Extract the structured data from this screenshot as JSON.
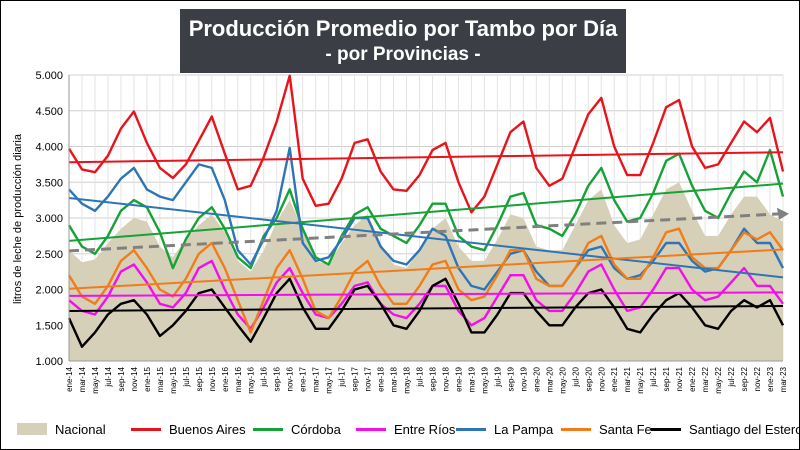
{
  "header": {
    "title": "Producción Promedio por Tambo por Día",
    "subtitle": "- por Provincias -"
  },
  "chart_data": {
    "type": "line",
    "ylabel": "litros de leche de producción diaria",
    "ylim": [
      1000,
      5000
    ],
    "y_ticks": [
      "1.000",
      "1.500",
      "2.000",
      "2.500",
      "3.000",
      "3.500",
      "4.000",
      "4.500",
      "5.000"
    ],
    "y_tick_values": [
      1000,
      1500,
      2000,
      2500,
      3000,
      3500,
      4000,
      4500,
      5000
    ],
    "x_labels": [
      "ene-14",
      "mar-14",
      "may-14",
      "jul-14",
      "sep-14",
      "nov-14",
      "ene-15",
      "mar-15",
      "may-15",
      "jul-15",
      "sep-15",
      "nov-15",
      "ene-16",
      "mar-16",
      "may-16",
      "jul-16",
      "sep-16",
      "nov-16",
      "ene-17",
      "mar-17",
      "may-17",
      "jul-17",
      "sep-17",
      "nov-17",
      "ene-18",
      "mar-18",
      "may-18",
      "jul-18",
      "sep-18",
      "nov-18",
      "ene-19",
      "mar-19",
      "may-19",
      "jul-19",
      "sep-19",
      "nov-19",
      "ene-20",
      "mar-20",
      "may-20",
      "jul-20",
      "sep-20",
      "nov-20",
      "ene-21",
      "mar-21",
      "may-21",
      "jul-21",
      "sep-21",
      "nov-21",
      "ene-22",
      "mar-22",
      "may-22",
      "jul-22",
      "sep-22",
      "nov-22",
      "ene-23",
      "mar-23"
    ],
    "grid": true,
    "legend_position": "bottom",
    "series": [
      {
        "name": "Nacional",
        "color": "#d6d0b8",
        "style": "area",
        "values": [
          2550,
          2380,
          2420,
          2650,
          2850,
          3000,
          2950,
          2600,
          2450,
          2700,
          2900,
          3050,
          2800,
          2400,
          2250,
          2550,
          2950,
          3250,
          2850,
          2400,
          2350,
          2650,
          2900,
          3050,
          2650,
          2350,
          2300,
          2550,
          2850,
          3000,
          2600,
          2400,
          2400,
          2700,
          3050,
          3000,
          2600,
          2550,
          2550,
          2900,
          3250,
          3400,
          2900,
          2650,
          2700,
          3050,
          3400,
          3500,
          3100,
          2750,
          2750,
          3050,
          3300,
          3300,
          3050,
          2950
        ]
      },
      {
        "name": "Buenos Aires",
        "color": "#e8141c",
        "style": "line",
        "values": [
          3970,
          3680,
          3640,
          3870,
          4250,
          4490,
          4050,
          3700,
          3560,
          3750,
          4080,
          4420,
          3900,
          3400,
          3450,
          3850,
          4350,
          4990,
          3550,
          3170,
          3200,
          3550,
          4050,
          4100,
          3650,
          3400,
          3380,
          3600,
          3950,
          4050,
          3500,
          3080,
          3300,
          3750,
          4200,
          4350,
          3700,
          3450,
          3550,
          4000,
          4450,
          4680,
          4000,
          3600,
          3600,
          4050,
          4550,
          4650,
          4000,
          3700,
          3750,
          4050,
          4350,
          4200,
          4400,
          3650
        ]
      },
      {
        "name": "Córdoba",
        "color": "#16a236",
        "style": "line",
        "values": [
          2900,
          2600,
          2500,
          2750,
          3100,
          3250,
          3150,
          2800,
          2300,
          2700,
          3000,
          3150,
          2850,
          2450,
          2300,
          2750,
          3000,
          3400,
          2850,
          2450,
          2350,
          2750,
          3050,
          3150,
          2850,
          2750,
          2650,
          2900,
          3200,
          3200,
          2750,
          2600,
          2550,
          2900,
          3300,
          3350,
          2900,
          2850,
          2750,
          3050,
          3450,
          3700,
          3250,
          2950,
          3000,
          3350,
          3800,
          3900,
          3450,
          3100,
          3000,
          3350,
          3650,
          3500,
          3950,
          3300
        ]
      },
      {
        "name": "Entre Ríos",
        "color": "#f20fe8",
        "style": "line",
        "values": [
          1850,
          1700,
          1650,
          1900,
          2250,
          2350,
          2100,
          1800,
          1750,
          1950,
          2300,
          2400,
          2000,
          1650,
          1450,
          1750,
          2100,
          2300,
          1950,
          1650,
          1600,
          1800,
          2050,
          2100,
          1800,
          1650,
          1600,
          1800,
          2050,
          2050,
          1700,
          1500,
          1600,
          1900,
          2200,
          2200,
          1850,
          1700,
          1700,
          1950,
          2250,
          2350,
          2000,
          1700,
          1750,
          2000,
          2300,
          2300,
          2000,
          1850,
          1900,
          2100,
          2300,
          2050,
          2050,
          1800
        ]
      },
      {
        "name": "La Pampa",
        "color": "#2e75b6",
        "style": "line",
        "values": [
          3400,
          3200,
          3100,
          3300,
          3550,
          3700,
          3400,
          3300,
          3250,
          3500,
          3750,
          3700,
          3250,
          2550,
          2350,
          2700,
          3100,
          3980,
          2650,
          2400,
          2450,
          2700,
          3000,
          3000,
          2600,
          2400,
          2350,
          2550,
          2850,
          2750,
          2300,
          2050,
          2000,
          2250,
          2500,
          2550,
          2250,
          2050,
          2050,
          2300,
          2550,
          2600,
          2300,
          2150,
          2200,
          2400,
          2650,
          2650,
          2400,
          2250,
          2300,
          2550,
          2850,
          2650,
          2650,
          2300
        ]
      },
      {
        "name": "Santa Fe",
        "color": "#f07d1a",
        "style": "line",
        "values": [
          2200,
          1900,
          1800,
          2050,
          2400,
          2550,
          2300,
          2000,
          1900,
          2150,
          2500,
          2650,
          2300,
          1850,
          1400,
          1850,
          2300,
          2550,
          2150,
          1700,
          1600,
          1900,
          2250,
          2400,
          2050,
          1800,
          1800,
          2050,
          2350,
          2400,
          2000,
          1850,
          1900,
          2200,
          2550,
          2550,
          2150,
          2050,
          2050,
          2300,
          2650,
          2750,
          2350,
          2150,
          2150,
          2450,
          2800,
          2850,
          2450,
          2300,
          2300,
          2550,
          2800,
          2700,
          2800,
          2550
        ]
      },
      {
        "name": "Santiago del Estero",
        "color": "#000000",
        "style": "line",
        "values": [
          1600,
          1200,
          1400,
          1650,
          1800,
          1850,
          1650,
          1350,
          1500,
          1700,
          1950,
          2000,
          1750,
          1500,
          1270,
          1600,
          1950,
          2150,
          1750,
          1450,
          1450,
          1700,
          2000,
          2050,
          1800,
          1500,
          1450,
          1700,
          2050,
          2150,
          1800,
          1400,
          1400,
          1650,
          1950,
          1950,
          1700,
          1500,
          1500,
          1750,
          1950,
          2000,
          1750,
          1450,
          1400,
          1650,
          1850,
          1950,
          1750,
          1500,
          1450,
          1700,
          1850,
          1750,
          1850,
          1500
        ]
      }
    ],
    "trendlines": [
      {
        "series": "Buenos Aires",
        "color": "#e8141c",
        "from": 3780,
        "to": 3920,
        "dashed": false
      },
      {
        "series": "Córdoba",
        "color": "#16a236",
        "from": 2680,
        "to": 3480,
        "dashed": false
      },
      {
        "series": "Entre Ríos",
        "color": "#f20fe8",
        "from": 1910,
        "to": 1960,
        "dashed": false
      },
      {
        "series": "La Pampa",
        "color": "#2e75b6",
        "from": 3280,
        "to": 2170,
        "dashed": false
      },
      {
        "series": "Santa Fe",
        "color": "#f07d1a",
        "from": 2010,
        "to": 2560,
        "dashed": false
      },
      {
        "series": "Santiago del Estero",
        "color": "#000000",
        "from": 1700,
        "to": 1770,
        "dashed": false
      },
      {
        "series": "Nacional",
        "color": "#808080",
        "from": 2540,
        "to": 3060,
        "dashed": true
      }
    ]
  },
  "legend": [
    {
      "label": "Nacional",
      "color": "#d6d0b8",
      "kind": "area"
    },
    {
      "label": "Buenos Aires",
      "color": "#e8141c",
      "kind": "line"
    },
    {
      "label": "Córdoba",
      "color": "#16a236",
      "kind": "line"
    },
    {
      "label": "Entre Ríos",
      "color": "#f20fe8",
      "kind": "line"
    },
    {
      "label": "La Pampa",
      "color": "#2e75b6",
      "kind": "line"
    },
    {
      "label": "Santa Fe",
      "color": "#f07d1a",
      "kind": "line"
    },
    {
      "label": "Santiago del Estero",
      "color": "#000000",
      "kind": "line"
    }
  ]
}
